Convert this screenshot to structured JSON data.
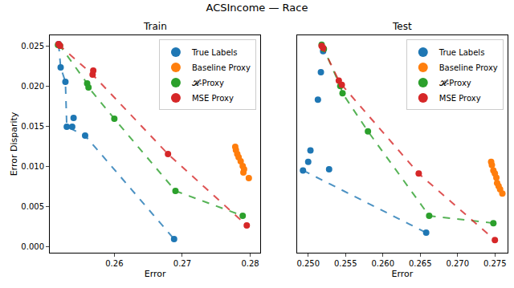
{
  "chart_data": {
    "type": "scatter",
    "title": "ACSIncome — Race",
    "legend": "upper right",
    "panels": [
      {
        "title": "Train",
        "xlabel": "Error",
        "ylabel": "Error Disparity",
        "xlim": [
          0.2505,
          0.2815
        ],
        "xticks": [
          0.26,
          0.27,
          0.28
        ],
        "ylim": [
          -0.0008,
          0.0263
        ],
        "yticks": [
          {
            "value": 0,
            "label": "0.000"
          },
          {
            "value": 0.005,
            "label": "0.005"
          },
          {
            "value": 0.01,
            "label": "0.010"
          },
          {
            "value": 0.015,
            "label": "0.015"
          },
          {
            "value": 0.02,
            "label": "0.020"
          },
          {
            "value": 0.025,
            "label": "0.025"
          }
        ],
        "series": [
          {
            "name": "True Labels",
            "color": "#1f77b4",
            "line_style": "dashed",
            "x": [
              0.2518,
              0.2521,
              0.2528,
              0.253,
              0.2538,
              0.254,
              0.2557,
              0.2688
            ],
            "values": [
              0.0252,
              0.0223,
              0.0205,
              0.0149,
              0.0149,
              0.016,
              0.0138,
              0.0009
            ]
          },
          {
            "name": "Baseline Proxy",
            "color": "#ff7f0e",
            "line_style": "none",
            "x": [
              0.2778,
              0.2779,
              0.2781,
              0.2783,
              0.2786,
              0.2789,
              0.2791,
              0.279,
              0.2798
            ],
            "values": [
              0.0124,
              0.012,
              0.0115,
              0.0111,
              0.0106,
              0.01,
              0.0096,
              0.0092,
              0.0085
            ]
          },
          {
            "name": "𝓗-Proxy",
            "color": "#2ca02c",
            "line_style": "dashed",
            "x": [
              0.2517,
              0.252,
              0.256,
              0.2562,
              0.26,
              0.269,
              0.2789
            ],
            "values": [
              0.0251,
              0.025,
              0.0203,
              0.0198,
              0.0159,
              0.0069,
              0.0038
            ]
          },
          {
            "name": "MSE Proxy",
            "color": "#d62728",
            "line_style": "dashed",
            "x": [
              0.2518,
              0.252,
              0.2569,
              0.2568,
              0.2679,
              0.2795
            ],
            "values": [
              0.0252,
              0.025,
              0.0219,
              0.0214,
              0.0115,
              0.0026
            ]
          }
        ]
      },
      {
        "title": "Test",
        "xlabel": "Error",
        "xlim": [
          0.2485,
          0.2767
        ],
        "xticks": [
          {
            "value": 0.25,
            "label": "0.250"
          },
          {
            "value": 0.255,
            "label": "0.255"
          },
          {
            "value": 0.26,
            "label": "0.260"
          },
          {
            "value": 0.265,
            "label": "0.265"
          },
          {
            "value": 0.27,
            "label": "0.270"
          },
          {
            "value": 0.275,
            "label": "0.275"
          }
        ],
        "ylim": [
          0.0012,
          0.0218
        ],
        "yticks": [],
        "series": [
          {
            "name": "True Labels",
            "color": "#1f77b4",
            "line_style": "dashed",
            "x": [
              0.2493,
              0.25,
              0.2503,
              0.2513,
              0.2517,
              0.252,
              0.2528,
              0.2658
            ],
            "values": [
              0.009,
              0.0098,
              0.0109,
              0.0157,
              0.0183,
              0.0203,
              0.0091,
              0.0031
            ]
          },
          {
            "name": "Baseline Proxy",
            "color": "#ff7f0e",
            "line_style": "none",
            "x": [
              0.2745,
              0.2746,
              0.2748,
              0.275,
              0.2752,
              0.2753,
              0.2755,
              0.2757,
              0.276
            ],
            "values": [
              0.0098,
              0.0095,
              0.009,
              0.0087,
              0.0083,
              0.0078,
              0.0075,
              0.0072,
              0.0068
            ]
          },
          {
            "name": "𝓗-Proxy",
            "color": "#2ca02c",
            "line_style": "dashed",
            "x": [
              0.2518,
              0.2521,
              0.2543,
              0.2546,
              0.258,
              0.2662,
              0.2748
            ],
            "values": [
              0.0209,
              0.0205,
              0.017,
              0.0163,
              0.0127,
              0.0047,
              0.004
            ]
          },
          {
            "name": "MSE Proxy",
            "color": "#d62728",
            "line_style": "dashed",
            "x": [
              0.2518,
              0.252,
              0.2541,
              0.2545,
              0.2648,
              0.275
            ],
            "values": [
              0.0208,
              0.0206,
              0.0175,
              0.0171,
              0.0087,
              0.0024
            ]
          }
        ]
      }
    ]
  }
}
